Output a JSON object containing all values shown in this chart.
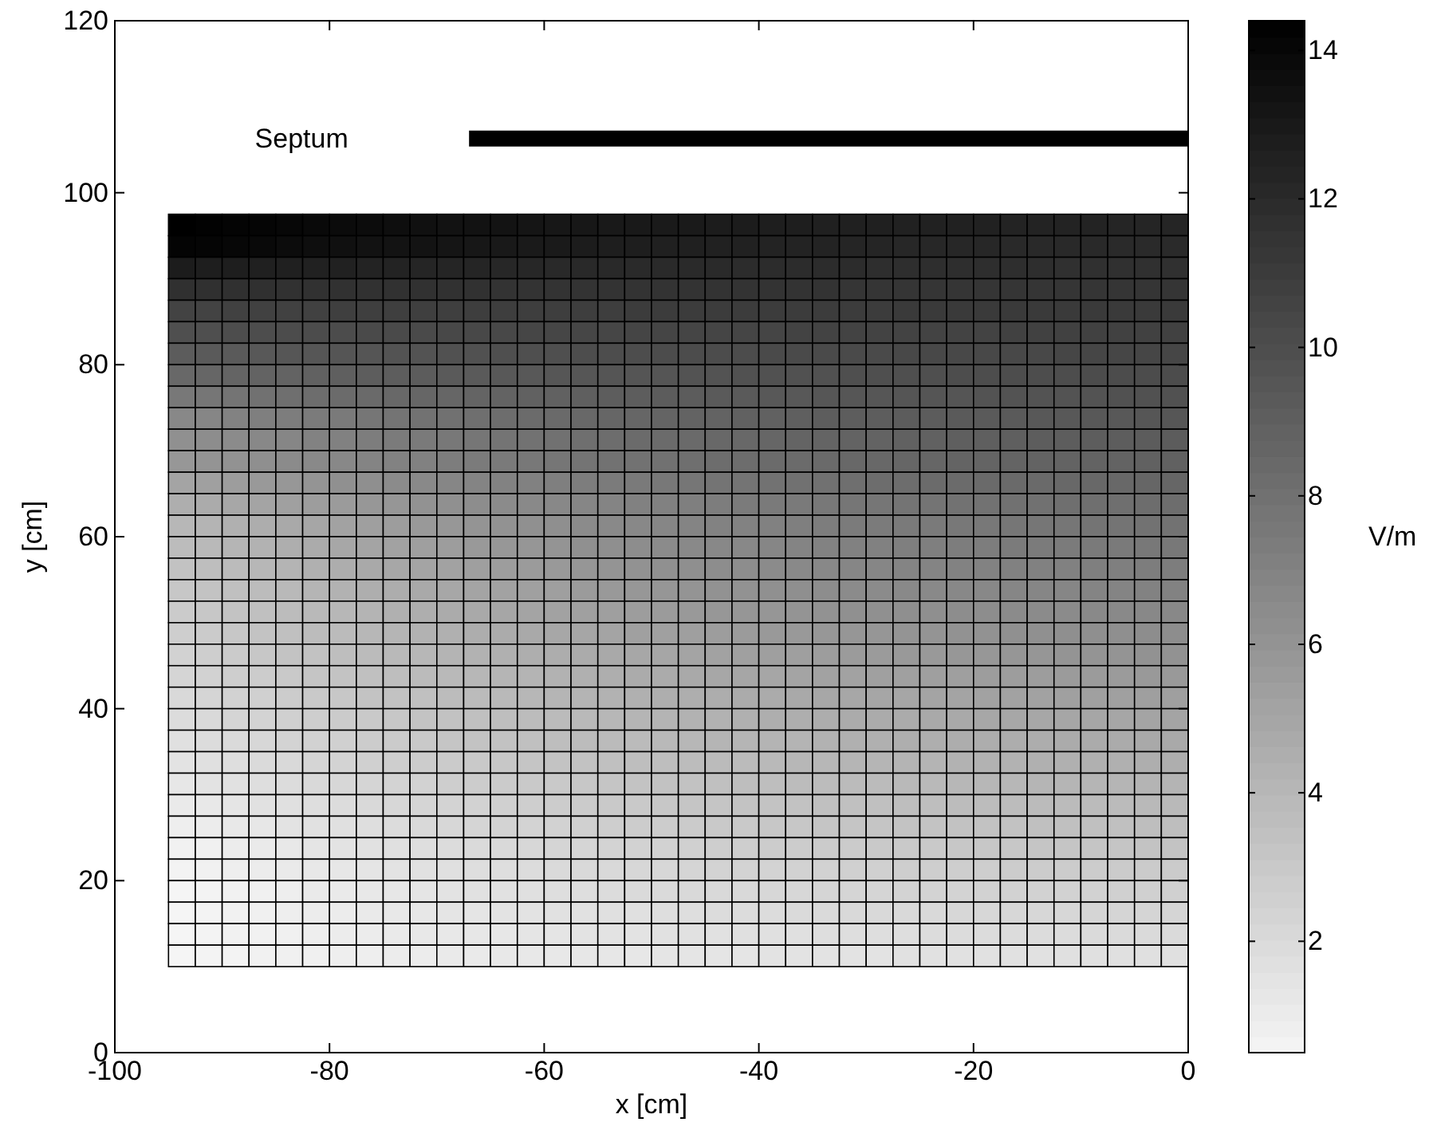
{
  "chart_data": {
    "type": "heatmap",
    "xlabel": "x [cm]",
    "ylabel": "y [cm]",
    "clabel": "V/m",
    "xlim": [
      -100,
      0
    ],
    "xticks": [
      -100,
      -80,
      -60,
      -40,
      -20,
      0
    ],
    "ylim": [
      0,
      120
    ],
    "yticks": [
      0,
      20,
      40,
      60,
      80,
      100,
      120
    ],
    "clim": [
      0.5,
      14.4
    ],
    "cticks": [
      2,
      4,
      6,
      8,
      10,
      12,
      14
    ],
    "x": [
      -93.75,
      -91.25,
      -88.75,
      -86.25,
      -83.75,
      -81.25,
      -78.75,
      -76.25,
      -73.75,
      -71.25,
      -68.75,
      -66.25,
      -63.75,
      -61.25,
      -58.75,
      -56.25,
      -53.75,
      -51.25,
      -48.75,
      -46.25,
      -43.75,
      -41.25,
      -38.75,
      -36.25,
      -33.75,
      -31.25,
      -28.75,
      -26.25,
      -23.75,
      -21.25,
      -18.75,
      -16.25,
      -13.75,
      -11.25,
      -8.75,
      -6.25,
      -3.75,
      -1.25
    ],
    "y": [
      96.25,
      93.75,
      91.25,
      88.75,
      86.25,
      83.75,
      81.25,
      78.75,
      76.25,
      73.75,
      71.25,
      68.75,
      66.25,
      63.75,
      61.25,
      58.75,
      56.25,
      53.75,
      51.25,
      48.75,
      46.25,
      43.75,
      41.25,
      38.75,
      36.25,
      33.75,
      31.25,
      28.75,
      26.25,
      23.75,
      21.25,
      18.75,
      16.25,
      13.75,
      11.25
    ],
    "cells": [
      [
        14.4,
        14.3,
        14.2,
        14.1,
        14.0,
        13.9,
        13.8,
        13.7,
        13.6,
        13.5,
        13.4,
        13.4,
        13.3,
        13.2,
        13.1,
        13.1,
        13.0,
        13.0,
        12.9,
        12.9,
        12.8,
        12.8,
        12.7,
        12.7,
        12.6,
        12.6,
        12.6,
        12.5,
        12.5,
        12.5,
        12.5,
        12.4,
        12.4,
        12.4,
        12.4,
        12.3,
        12.3,
        12.3
      ],
      [
        14.2,
        14.1,
        14.0,
        13.9,
        13.7,
        13.6,
        13.5,
        13.4,
        13.3,
        13.3,
        13.2,
        13.1,
        13.0,
        12.9,
        12.9,
        12.8,
        12.7,
        12.7,
        12.6,
        12.6,
        12.5,
        12.5,
        12.4,
        12.4,
        12.4,
        12.3,
        12.3,
        12.2,
        12.2,
        12.2,
        12.2,
        12.1,
        12.1,
        12.1,
        12.1,
        12.0,
        12.0,
        12.0
      ],
      [
        12.8,
        12.7,
        12.7,
        12.6,
        12.6,
        12.5,
        12.5,
        12.4,
        12.4,
        12.3,
        12.3,
        12.3,
        12.2,
        12.2,
        12.1,
        12.1,
        12.1,
        12.0,
        12.0,
        12.0,
        12.0,
        11.9,
        11.9,
        11.9,
        11.9,
        11.9,
        11.8,
        11.8,
        11.8,
        11.8,
        11.8,
        11.8,
        11.8,
        11.7,
        11.7,
        11.7,
        11.7,
        11.7
      ],
      [
        11.7,
        11.7,
        11.7,
        11.7,
        11.6,
        11.6,
        11.6,
        11.6,
        11.6,
        11.6,
        11.6,
        11.6,
        11.5,
        11.5,
        11.5,
        11.5,
        11.5,
        11.5,
        11.5,
        11.5,
        11.5,
        11.5,
        11.5,
        11.5,
        11.5,
        11.4,
        11.4,
        11.4,
        11.4,
        11.4,
        11.4,
        11.4,
        11.4,
        11.4,
        11.4,
        11.4,
        11.4,
        11.4
      ],
      [
        10.6,
        10.6,
        10.7,
        10.7,
        10.7,
        10.7,
        10.8,
        10.8,
        10.8,
        10.8,
        10.8,
        10.9,
        10.9,
        10.9,
        10.9,
        10.9,
        10.9,
        11.0,
        11.0,
        11.0,
        11.0,
        11.0,
        11.0,
        11.0,
        11.0,
        11.0,
        11.0,
        11.1,
        11.1,
        11.1,
        11.1,
        11.1,
        11.1,
        11.1,
        11.1,
        11.1,
        11.1,
        11.1
      ],
      [
        9.9,
        9.9,
        10.0,
        10.0,
        10.1,
        10.1,
        10.1,
        10.2,
        10.2,
        10.2,
        10.3,
        10.3,
        10.3,
        10.4,
        10.4,
        10.4,
        10.4,
        10.5,
        10.5,
        10.5,
        10.5,
        10.5,
        10.5,
        10.6,
        10.6,
        10.6,
        10.6,
        10.6,
        10.6,
        10.6,
        10.6,
        10.7,
        10.7,
        10.7,
        10.7,
        10.7,
        10.7,
        10.7
      ],
      [
        9.2,
        9.3,
        9.3,
        9.4,
        9.5,
        9.5,
        9.6,
        9.6,
        9.7,
        9.7,
        9.8,
        9.8,
        9.9,
        9.9,
        9.9,
        10.0,
        10.0,
        10.0,
        10.1,
        10.1,
        10.1,
        10.1,
        10.2,
        10.2,
        10.2,
        10.2,
        10.2,
        10.3,
        10.3,
        10.3,
        10.3,
        10.3,
        10.3,
        10.4,
        10.4,
        10.4,
        10.4,
        10.4
      ],
      [
        8.5,
        8.6,
        8.7,
        8.8,
        8.8,
        8.9,
        9.0,
        9.1,
        9.1,
        9.2,
        9.3,
        9.3,
        9.4,
        9.4,
        9.5,
        9.5,
        9.6,
        9.6,
        9.6,
        9.7,
        9.7,
        9.8,
        9.8,
        9.8,
        9.8,
        9.9,
        9.9,
        9.9,
        9.9,
        10.0,
        10.0,
        10.0,
        10.0,
        10.0,
        10.1,
        10.1,
        10.1,
        10.1
      ],
      [
        7.6,
        7.7,
        7.8,
        8.0,
        8.1,
        8.2,
        8.3,
        8.4,
        8.5,
        8.6,
        8.6,
        8.7,
        8.8,
        8.9,
        8.9,
        9.0,
        9.1,
        9.1,
        9.2,
        9.2,
        9.3,
        9.3,
        9.4,
        9.4,
        9.5,
        9.5,
        9.5,
        9.6,
        9.6,
        9.6,
        9.7,
        9.7,
        9.7,
        9.7,
        9.7,
        9.8,
        9.8,
        9.8
      ],
      [
        6.7,
        6.8,
        7.0,
        7.2,
        7.3,
        7.4,
        7.5,
        7.7,
        7.8,
        7.9,
        8.0,
        8.1,
        8.2,
        8.3,
        8.4,
        8.5,
        8.6,
        8.6,
        8.7,
        8.8,
        8.8,
        8.9,
        8.9,
        9.0,
        9.1,
        9.1,
        9.1,
        9.2,
        9.2,
        9.3,
        9.3,
        9.3,
        9.4,
        9.4,
        9.4,
        9.4,
        9.5,
        9.5
      ],
      [
        6.2,
        6.4,
        6.5,
        6.7,
        6.8,
        7.0,
        7.1,
        7.3,
        7.4,
        7.5,
        7.6,
        7.7,
        7.8,
        7.9,
        8.0,
        8.1,
        8.2,
        8.3,
        8.3,
        8.4,
        8.5,
        8.5,
        8.6,
        8.7,
        8.7,
        8.8,
        8.8,
        8.9,
        8.9,
        9.0,
        9.0,
        9.0,
        9.1,
        9.1,
        9.1,
        9.1,
        9.2,
        9.2
      ],
      [
        5.8,
        6.0,
        6.1,
        6.3,
        6.5,
        6.6,
        6.7,
        6.9,
        7.0,
        7.1,
        7.3,
        7.4,
        7.5,
        7.6,
        7.7,
        7.8,
        7.9,
        7.9,
        8.0,
        8.1,
        8.2,
        8.2,
        8.3,
        8.3,
        8.4,
        8.5,
        8.5,
        8.6,
        8.6,
        8.7,
        8.7,
        8.7,
        8.8,
        8.8,
        8.8,
        8.8,
        8.9,
        8.9
      ],
      [
        5.1,
        5.3,
        5.5,
        5.7,
        5.8,
        6.0,
        6.2,
        6.3,
        6.5,
        6.6,
        6.8,
        6.9,
        7.0,
        7.1,
        7.2,
        7.3,
        7.4,
        7.5,
        7.6,
        7.7,
        7.8,
        7.8,
        7.9,
        8.0,
        8.0,
        8.1,
        8.2,
        8.2,
        8.3,
        8.3,
        8.4,
        8.4,
        8.4,
        8.5,
        8.5,
        8.5,
        8.6,
        8.6
      ],
      [
        4.5,
        4.7,
        4.9,
        5.1,
        5.3,
        5.5,
        5.6,
        5.8,
        5.9,
        6.1,
        6.2,
        6.4,
        6.5,
        6.6,
        6.7,
        6.8,
        6.9,
        7.1,
        7.1,
        7.2,
        7.3,
        7.4,
        7.5,
        7.5,
        7.6,
        7.7,
        7.7,
        7.8,
        7.8,
        7.9,
        7.9,
        8.0,
        8.0,
        8.1,
        8.1,
        8.1,
        8.2,
        8.2
      ],
      [
        4.0,
        4.2,
        4.4,
        4.6,
        4.8,
        5.0,
        5.2,
        5.4,
        5.5,
        5.7,
        5.8,
        6.0,
        6.1,
        6.2,
        6.3,
        6.5,
        6.6,
        6.7,
        6.8,
        6.9,
        7.0,
        7.0,
        7.1,
        7.2,
        7.3,
        7.4,
        7.4,
        7.5,
        7.5,
        7.6,
        7.6,
        7.7,
        7.7,
        7.7,
        7.8,
        7.8,
        7.9,
        7.9
      ],
      [
        3.7,
        3.9,
        4.1,
        4.3,
        4.5,
        4.7,
        4.9,
        5.1,
        5.2,
        5.4,
        5.5,
        5.7,
        5.8,
        5.9,
        6.0,
        6.2,
        6.3,
        6.4,
        6.5,
        6.6,
        6.7,
        6.7,
        6.8,
        6.9,
        7.0,
        7.1,
        7.1,
        7.2,
        7.2,
        7.3,
        7.3,
        7.4,
        7.4,
        7.4,
        7.5,
        7.5,
        7.6,
        7.6
      ],
      [
        3.4,
        3.6,
        3.8,
        4.0,
        4.2,
        4.4,
        4.6,
        4.8,
        4.9,
        5.1,
        5.2,
        5.4,
        5.5,
        5.6,
        5.7,
        5.9,
        6.0,
        6.1,
        6.2,
        6.3,
        6.4,
        6.4,
        6.5,
        6.6,
        6.7,
        6.8,
        6.8,
        6.9,
        6.9,
        7.0,
        7.0,
        7.1,
        7.1,
        7.1,
        7.2,
        7.2,
        7.3,
        7.3
      ],
      [
        3.1,
        3.3,
        3.5,
        3.7,
        3.9,
        4.1,
        4.3,
        4.5,
        4.6,
        4.8,
        4.9,
        5.1,
        5.2,
        5.3,
        5.4,
        5.6,
        5.7,
        5.8,
        5.9,
        6.0,
        6.1,
        6.1,
        6.2,
        6.3,
        6.4,
        6.5,
        6.5,
        6.6,
        6.6,
        6.7,
        6.7,
        6.8,
        6.8,
        6.8,
        6.9,
        6.9,
        7.0,
        7.0
      ],
      [
        2.9,
        3.1,
        3.3,
        3.5,
        3.7,
        3.9,
        4.0,
        4.2,
        4.4,
        4.5,
        4.7,
        4.8,
        5.0,
        5.1,
        5.2,
        5.3,
        5.4,
        5.5,
        5.6,
        5.7,
        5.8,
        5.9,
        5.9,
        6.0,
        6.1,
        6.2,
        6.2,
        6.3,
        6.3,
        6.4,
        6.4,
        6.5,
        6.5,
        6.5,
        6.6,
        6.6,
        6.7,
        6.7
      ],
      [
        2.7,
        2.9,
        3.1,
        3.3,
        3.5,
        3.7,
        3.8,
        4.0,
        4.1,
        4.3,
        4.4,
        4.6,
        4.7,
        4.8,
        4.9,
        5.0,
        5.1,
        5.3,
        5.3,
        5.4,
        5.5,
        5.6,
        5.7,
        5.7,
        5.8,
        5.9,
        5.9,
        6.0,
        6.0,
        6.1,
        6.1,
        6.2,
        6.2,
        6.3,
        6.3,
        6.3,
        6.4,
        6.4
      ],
      [
        2.5,
        2.7,
        2.9,
        3.1,
        3.3,
        3.4,
        3.6,
        3.8,
        3.9,
        4.0,
        4.2,
        4.3,
        4.4,
        4.5,
        4.6,
        4.7,
        4.8,
        4.9,
        5.0,
        5.1,
        5.2,
        5.3,
        5.4,
        5.4,
        5.5,
        5.6,
        5.6,
        5.7,
        5.7,
        5.8,
        5.8,
        5.9,
        5.9,
        6.0,
        6.0,
        6.0,
        6.1,
        6.1
      ],
      [
        2.3,
        2.5,
        2.7,
        2.8,
        3.0,
        3.2,
        3.3,
        3.5,
        3.6,
        3.8,
        3.9,
        4.0,
        4.1,
        4.2,
        4.3,
        4.4,
        4.5,
        4.7,
        4.7,
        4.8,
        4.9,
        5.0,
        5.0,
        5.1,
        5.2,
        5.2,
        5.3,
        5.3,
        5.4,
        5.4,
        5.5,
        5.5,
        5.5,
        5.6,
        5.6,
        5.6,
        5.7,
        5.7
      ],
      [
        2.1,
        2.3,
        2.5,
        2.6,
        2.8,
        3.0,
        3.1,
        3.3,
        3.4,
        3.5,
        3.7,
        3.8,
        3.9,
        4.0,
        4.1,
        4.2,
        4.3,
        4.4,
        4.5,
        4.5,
        4.6,
        4.7,
        4.7,
        4.8,
        4.9,
        4.9,
        5.0,
        5.0,
        5.1,
        5.1,
        5.2,
        5.2,
        5.2,
        5.3,
        5.3,
        5.3,
        5.4,
        5.4
      ],
      [
        1.9,
        2.1,
        2.3,
        2.4,
        2.6,
        2.7,
        2.9,
        3.0,
        3.1,
        3.3,
        3.4,
        3.5,
        3.6,
        3.7,
        3.8,
        3.9,
        4.0,
        4.1,
        4.2,
        4.3,
        4.3,
        4.4,
        4.5,
        4.5,
        4.6,
        4.7,
        4.7,
        4.7,
        4.8,
        4.8,
        4.9,
        4.9,
        4.9,
        5.0,
        5.0,
        5.0,
        5.1,
        5.1
      ],
      [
        1.7,
        1.9,
        2.0,
        2.2,
        2.4,
        2.5,
        2.6,
        2.8,
        2.9,
        3.0,
        3.2,
        3.3,
        3.4,
        3.5,
        3.6,
        3.7,
        3.8,
        3.8,
        3.9,
        4.0,
        4.1,
        4.1,
        4.2,
        4.2,
        4.3,
        4.4,
        4.4,
        4.5,
        4.5,
        4.6,
        4.6,
        4.6,
        4.6,
        4.7,
        4.7,
        4.7,
        4.8,
        4.8
      ],
      [
        1.5,
        1.7,
        1.8,
        2.0,
        2.1,
        2.3,
        2.4,
        2.6,
        2.7,
        2.8,
        2.9,
        3.0,
        3.1,
        3.2,
        3.3,
        3.4,
        3.5,
        3.6,
        3.6,
        3.7,
        3.8,
        3.8,
        3.9,
        4.0,
        4.0,
        4.1,
        4.1,
        4.2,
        4.2,
        4.3,
        4.3,
        4.3,
        4.4,
        4.4,
        4.4,
        4.4,
        4.5,
        4.5
      ],
      [
        1.3,
        1.5,
        1.6,
        1.8,
        1.9,
        2.1,
        2.2,
        2.3,
        2.4,
        2.5,
        2.7,
        2.8,
        2.9,
        3.0,
        3.0,
        3.1,
        3.2,
        3.3,
        3.4,
        3.4,
        3.5,
        3.6,
        3.6,
        3.7,
        3.7,
        3.8,
        3.8,
        3.9,
        3.9,
        4.0,
        4.0,
        4.0,
        4.1,
        4.1,
        4.1,
        4.1,
        4.2,
        4.2
      ],
      [
        1.1,
        1.2,
        1.4,
        1.6,
        1.7,
        1.8,
        1.9,
        2.1,
        2.2,
        2.3,
        2.4,
        2.5,
        2.6,
        2.7,
        2.8,
        2.9,
        3.0,
        3.0,
        3.1,
        3.2,
        3.2,
        3.3,
        3.3,
        3.4,
        3.5,
        3.5,
        3.5,
        3.6,
        3.6,
        3.7,
        3.7,
        3.7,
        3.8,
        3.8,
        3.8,
        3.8,
        3.9,
        3.9
      ],
      [
        0.9,
        1.0,
        1.2,
        1.3,
        1.5,
        1.6,
        1.7,
        1.8,
        1.9,
        2.1,
        2.2,
        2.3,
        2.4,
        2.4,
        2.5,
        2.6,
        2.7,
        2.8,
        2.8,
        2.9,
        3.0,
        3.0,
        3.1,
        3.1,
        3.2,
        3.2,
        3.2,
        3.3,
        3.3,
        3.4,
        3.4,
        3.4,
        3.5,
        3.5,
        3.5,
        3.5,
        3.6,
        3.6
      ],
      [
        0.7,
        0.8,
        1.0,
        1.1,
        1.2,
        1.4,
        1.5,
        1.6,
        1.7,
        1.8,
        1.9,
        2.0,
        2.1,
        2.2,
        2.3,
        2.3,
        2.4,
        2.5,
        2.5,
        2.6,
        2.7,
        2.7,
        2.8,
        2.8,
        2.9,
        2.9,
        3.0,
        3.0,
        3.0,
        3.1,
        3.1,
        3.1,
        3.2,
        3.2,
        3.2,
        3.2,
        3.3,
        3.3
      ],
      [
        0.6,
        0.7,
        0.9,
        1.0,
        1.1,
        1.2,
        1.3,
        1.4,
        1.5,
        1.6,
        1.7,
        1.8,
        1.8,
        1.9,
        2.0,
        2.1,
        2.1,
        2.2,
        2.2,
        2.3,
        2.4,
        2.4,
        2.4,
        2.5,
        2.5,
        2.6,
        2.6,
        2.7,
        2.7,
        2.7,
        2.7,
        2.8,
        2.8,
        2.8,
        2.8,
        2.9,
        2.9,
        2.9
      ],
      [
        0.5,
        0.6,
        0.7,
        0.8,
        0.9,
        1.1,
        1.1,
        1.2,
        1.3,
        1.4,
        1.5,
        1.6,
        1.6,
        1.7,
        1.8,
        1.8,
        1.9,
        2.0,
        2.0,
        2.1,
        2.1,
        2.1,
        2.2,
        2.2,
        2.3,
        2.3,
        2.3,
        2.4,
        2.4,
        2.4,
        2.5,
        2.5,
        2.5,
        2.5,
        2.5,
        2.6,
        2.6,
        2.6
      ],
      [
        0.5,
        0.6,
        0.7,
        0.8,
        0.9,
        1.0,
        1.0,
        1.1,
        1.2,
        1.3,
        1.4,
        1.4,
        1.5,
        1.5,
        1.6,
        1.6,
        1.7,
        1.7,
        1.8,
        1.8,
        1.9,
        1.9,
        1.9,
        2.0,
        2.0,
        2.1,
        2.1,
        2.1,
        2.1,
        2.2,
        2.2,
        2.2,
        2.2,
        2.2,
        2.3,
        2.3,
        2.3,
        2.3
      ],
      [
        0.5,
        0.6,
        0.7,
        0.7,
        0.8,
        0.9,
        1.0,
        1.0,
        1.1,
        1.2,
        1.2,
        1.3,
        1.3,
        1.4,
        1.4,
        1.5,
        1.5,
        1.5,
        1.6,
        1.6,
        1.6,
        1.7,
        1.7,
        1.7,
        1.8,
        1.8,
        1.8,
        1.8,
        1.9,
        1.9,
        1.9,
        1.9,
        1.9,
        1.9,
        2.0,
        2.0,
        2.0,
        2.0
      ],
      [
        0.5,
        0.6,
        0.6,
        0.7,
        0.8,
        0.8,
        0.9,
        0.9,
        1.0,
        1.0,
        1.1,
        1.1,
        1.2,
        1.2,
        1.2,
        1.3,
        1.3,
        1.3,
        1.4,
        1.4,
        1.4,
        1.4,
        1.5,
        1.5,
        1.5,
        1.5,
        1.5,
        1.6,
        1.6,
        1.6,
        1.6,
        1.6,
        1.6,
        1.7,
        1.7,
        1.7,
        1.7,
        1.7
      ]
    ],
    "series": [
      {
        "type": "line",
        "x": [
          -67,
          0
        ],
        "values": [
          106.3,
          106.3
        ],
        "color": "#000000"
      }
    ],
    "annotations": [
      "Septum"
    ]
  }
}
